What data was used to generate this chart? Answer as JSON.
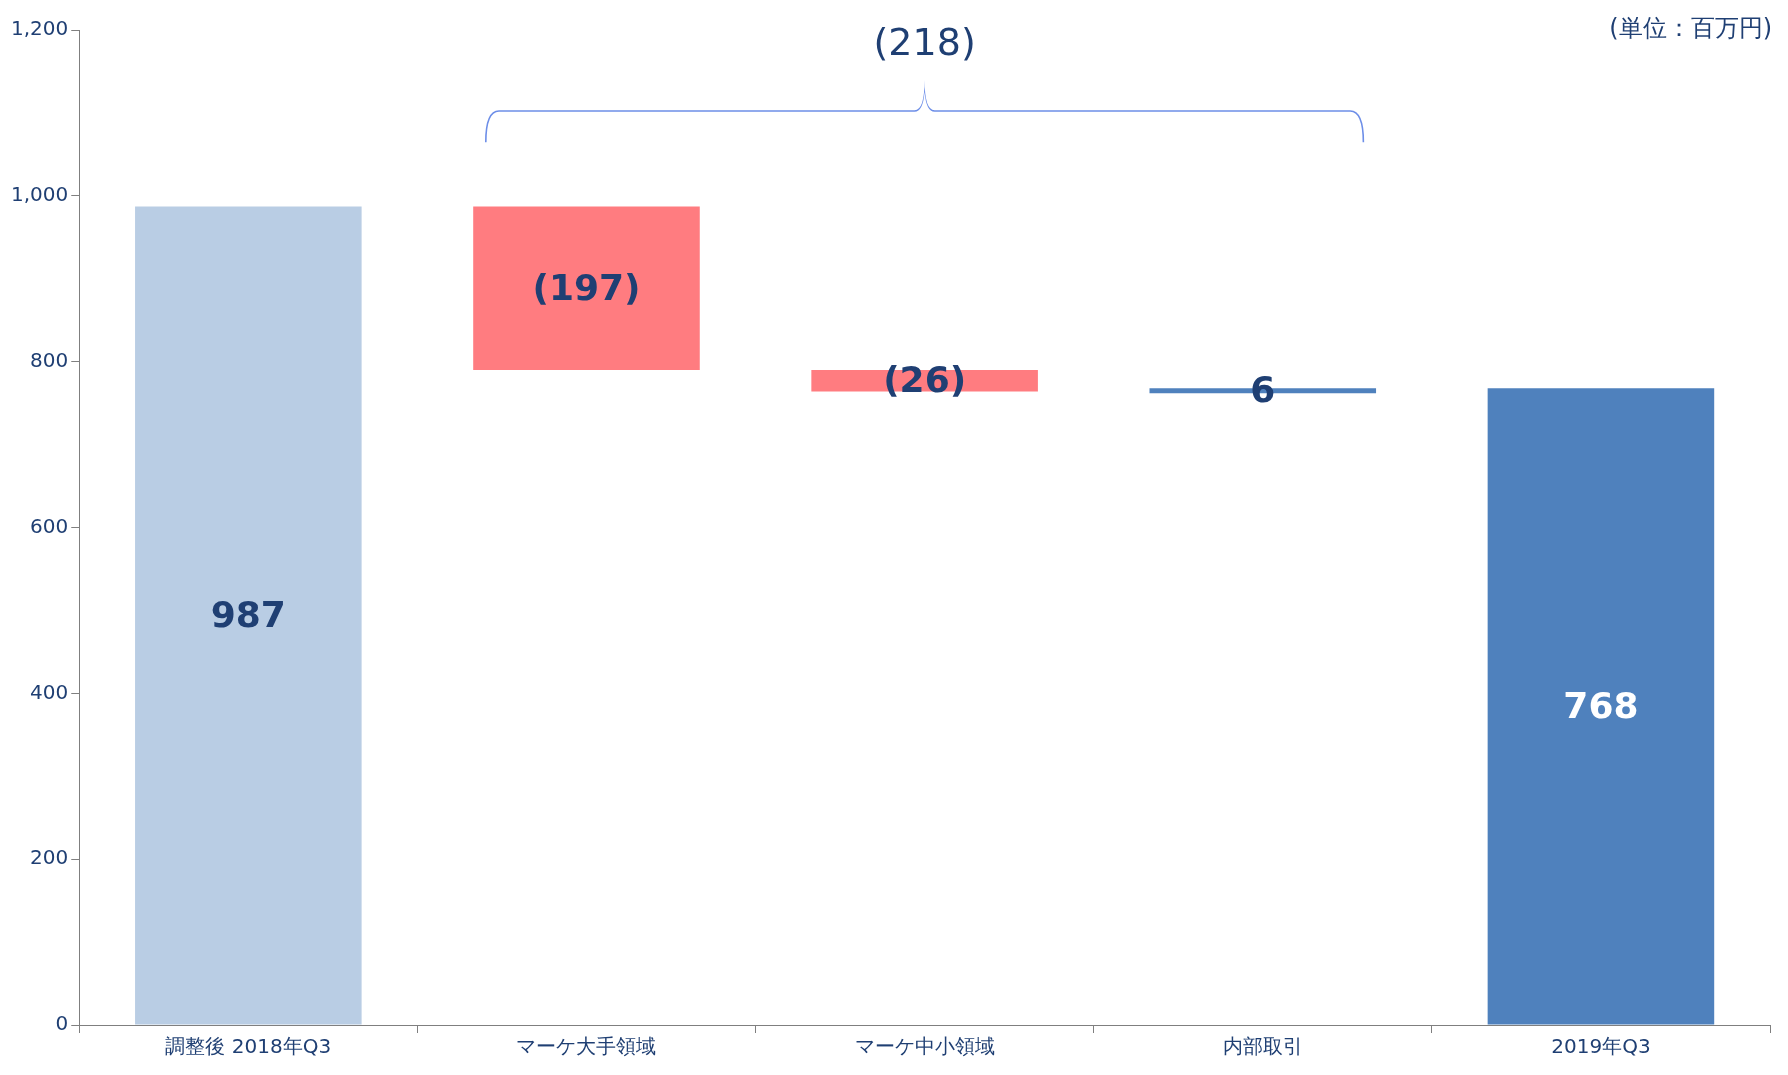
{
  "chart_data": {
    "type": "bar",
    "categories": [
      "調整後 2018年Q3",
      "マーケ大手領域",
      "マーケ中小領域",
      "内部取引",
      "2019年Q3"
    ],
    "values": [
      987,
      -197,
      -26,
      6,
      768
    ],
    "base": [
      0,
      987,
      790,
      762,
      0
    ],
    "colors": [
      "#b9cde4",
      "#ff7c80",
      "#ff7c80",
      "#4f81bd",
      "#4f81bd"
    ],
    "value_labels": [
      "987",
      "(197)",
      "(26)",
      "6",
      "768"
    ],
    "ylim": [
      0,
      1200
    ],
    "yticks": [
      {
        "value": 0,
        "label": "0"
      },
      {
        "value": 200,
        "label": "200"
      },
      {
        "value": 400,
        "label": "400"
      },
      {
        "value": 600,
        "label": "600"
      },
      {
        "value": 800,
        "label": "800"
      },
      {
        "value": 1000,
        "label": "1,000"
      },
      {
        "value": 1200,
        "label": "1,200"
      }
    ],
    "grid": false,
    "legend": false,
    "annotations": [
      "(218)",
      "(単位：百万円)"
    ]
  }
}
